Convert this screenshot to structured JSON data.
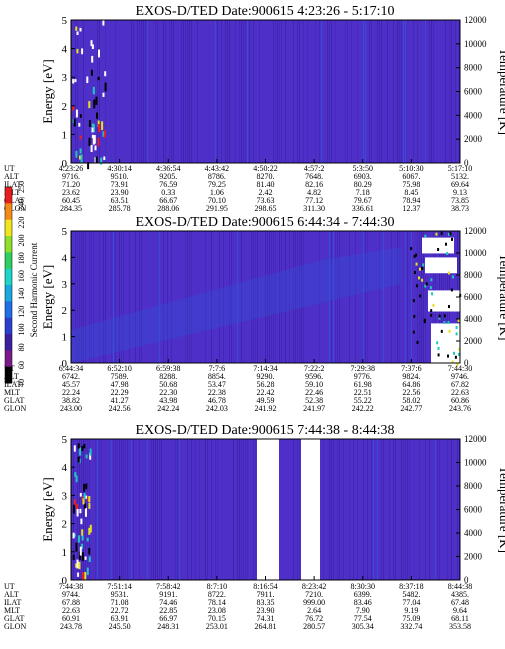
{
  "colorbar": {
    "label": "Second Harmonic Current",
    "ticks": [
      "40",
      "60",
      "80",
      "100",
      "120",
      "140",
      "160",
      "180",
      "200",
      "220",
      "240",
      "250"
    ],
    "colors": [
      "#000000",
      "#7a1a8a",
      "#3a1f9e",
      "#2a3fd0",
      "#1e6fe8",
      "#1aa8e0",
      "#1ed6c8",
      "#2fd060",
      "#8ee02a",
      "#f2e51e",
      "#f48a18",
      "#e81e1e"
    ]
  },
  "panel_style": {
    "background": "#4e2fc8",
    "stripe": "#3b1fa6",
    "hot": "#2a63e6"
  },
  "chart_data": [
    {
      "type": "heatmap",
      "title": "EXOS-D/TED   Date:900615   4:23:26 - 5:17:10",
      "ylabel": "Energy [eV]",
      "y2label": "Temperature [K]",
      "ylim": [
        0,
        5
      ],
      "y2lim": [
        0,
        12000
      ],
      "yticks": [
        "0",
        "1",
        "2",
        "3",
        "4",
        "5"
      ],
      "y2ticks": [
        "0",
        "2000",
        "4000",
        "6000",
        "8000",
        "10000",
        "12000"
      ],
      "table": {
        "labels": [
          "UT",
          "ALT",
          "ILAT",
          "MLT",
          "GLAT",
          "GLON"
        ],
        "columns": [
          [
            "4:23:26",
            "9716.",
            "71.20",
            "23.62",
            "60.45",
            "284.35"
          ],
          [
            "4:30:14",
            "9510.",
            "73.91",
            "23.90",
            "63.51",
            "285.78"
          ],
          [
            "4:36:54",
            "9205.",
            "76.59",
            "0.33",
            "66.67",
            "288.06"
          ],
          [
            "4:43:42",
            "8786.",
            "79.25",
            "1.06",
            "70.10",
            "291.95"
          ],
          [
            "4:50:22",
            "8270.",
            "81.40",
            "2.42",
            "73.63",
            "298.65"
          ],
          [
            "4:57:2",
            "7648.",
            "82.16",
            "4.82",
            "77.12",
            "311.30"
          ],
          [
            "5:3:50",
            "6903.",
            "80.29",
            "7.18",
            "79.67",
            "336.61"
          ],
          [
            "5:10:30",
            "6067.",
            "75.98",
            "8.45",
            "78.94",
            "12.37"
          ],
          [
            "5:17:10",
            "5132.",
            "69.64",
            "9.13",
            "73.85",
            "38.73"
          ]
        ]
      }
    },
    {
      "type": "heatmap",
      "title": "EXOS-D/TED   Date:900615   6:44:34 - 7:44:30",
      "ylabel": "Energy [eV]",
      "y2label": "Temperature [K]",
      "ylim": [
        0,
        5
      ],
      "y2lim": [
        0,
        12000
      ],
      "yticks": [
        "0",
        "1",
        "2",
        "3",
        "4",
        "5"
      ],
      "y2ticks": [
        "0",
        "2000",
        "4000",
        "6000",
        "8000",
        "10000",
        "12000"
      ],
      "table": {
        "labels": [
          "UT",
          "ALT",
          "ILAT",
          "MLT",
          "GLAT",
          "GLON"
        ],
        "columns": [
          [
            "6:44:34",
            "6742.",
            "45.57",
            "22.24",
            "38.82",
            "243.00"
          ],
          [
            "6:52:10",
            "7589.",
            "47.98",
            "22.29",
            "41.27",
            "242.56"
          ],
          [
            "6:59:38",
            "8288.",
            "50.68",
            "22.30",
            "43.98",
            "242.24"
          ],
          [
            "7:7:6",
            "8854.",
            "53.47",
            "22.38",
            "46.78",
            "242.03"
          ],
          [
            "7:14:34",
            "9290.",
            "56.28",
            "22.42",
            "49.59",
            "241.92"
          ],
          [
            "7:22:2",
            "9596.",
            "59.10",
            "22.46",
            "52.38",
            "241.97"
          ],
          [
            "7:29:38",
            "9776.",
            "61.98",
            "22.51",
            "55.22",
            "242.22"
          ],
          [
            "7:37:6",
            "9824.",
            "64.86",
            "22.56",
            "58.02",
            "242.77"
          ],
          [
            "7:44:30",
            "9746.",
            "67.82",
            "22.63",
            "60.86",
            "243.76"
          ]
        ]
      }
    },
    {
      "type": "heatmap",
      "title": "EXOS-D/TED   Date:900615   7:44:38 - 8:44:38",
      "ylabel": "Energy [eV]",
      "y2label": "Temperature [K]",
      "ylim": [
        0,
        5
      ],
      "y2lim": [
        0,
        12000
      ],
      "yticks": [
        "0",
        "1",
        "2",
        "3",
        "4",
        "5"
      ],
      "y2ticks": [
        "0",
        "2000",
        "4000",
        "6000",
        "8000",
        "10000",
        "12000"
      ],
      "table": {
        "labels": [
          "UT",
          "ALT",
          "ILAT",
          "MLT",
          "GLAT",
          "GLON"
        ],
        "columns": [
          [
            "7:44:38",
            "9744.",
            "67.88",
            "22.63",
            "60.91",
            "243.78"
          ],
          [
            "7:51:14",
            "9531.",
            "71.08",
            "22.72",
            "63.91",
            "245.50"
          ],
          [
            "7:58:42",
            "9191.",
            "74.46",
            "22.85",
            "66.97",
            "248.31"
          ],
          [
            "8:7:10",
            "8722.",
            "78.14",
            "23.08",
            "70.15",
            "253.01"
          ],
          [
            "8:16:54",
            "7911.",
            "83.35",
            "23.90",
            "74.31",
            "264.81"
          ],
          [
            "8:23:42",
            "7210.",
            "999.00",
            "2.64",
            "76.72",
            "280.57"
          ],
          [
            "8:30:30",
            "6399.",
            "83.46",
            "7.90",
            "77.54",
            "305.34"
          ],
          [
            "8:37:18",
            "5482.",
            "77.04",
            "9.19",
            "75.09",
            "332.74"
          ],
          [
            "8:44:38",
            "4385.",
            "67.48",
            "9.64",
            "68.11",
            "353.58"
          ]
        ]
      }
    }
  ]
}
